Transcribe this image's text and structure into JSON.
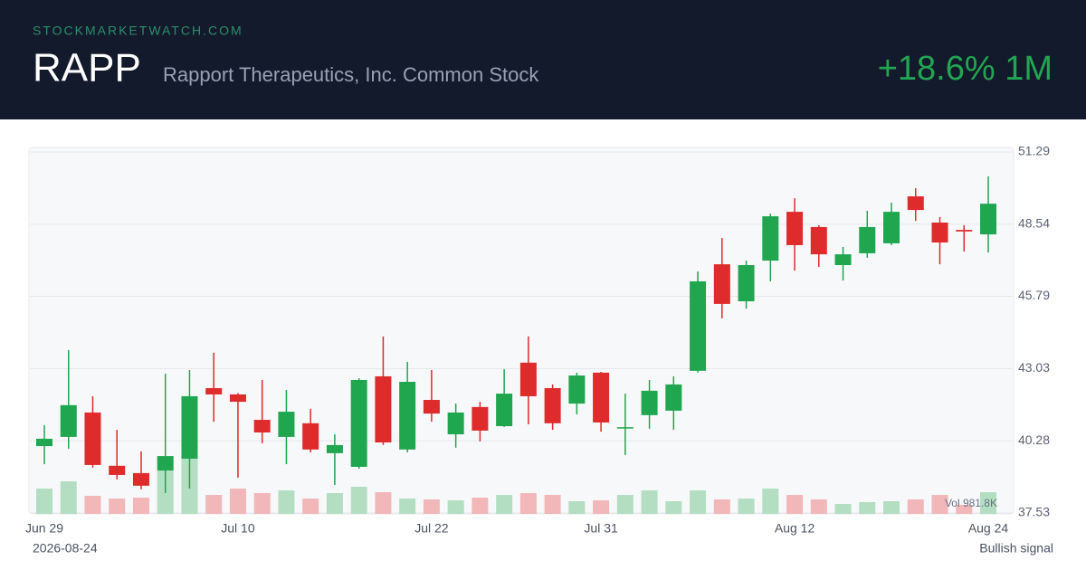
{
  "header": {
    "site": "STOCKMARKETWATCH.COM",
    "ticker": "RAPP",
    "name": "Rapport Therapeutics, Inc. Common Stock",
    "change": "+18.6% 1M"
  },
  "chart_data": {
    "type": "candlestick",
    "categories": [
      "Jun 29",
      null,
      null,
      null,
      null,
      null,
      null,
      null,
      "Jul 10",
      null,
      null,
      null,
      null,
      null,
      null,
      null,
      "Jul 22",
      null,
      null,
      null,
      null,
      null,
      null,
      "Jul 31",
      null,
      null,
      null,
      null,
      null,
      null,
      null,
      "Aug 12",
      null,
      null,
      null,
      null,
      null,
      null,
      null,
      "Aug 24"
    ],
    "open": [
      40.08,
      40.43,
      41.36,
      39.33,
      39.05,
      39.15,
      39.6,
      42.29,
      42.05,
      41.08,
      40.43,
      40.95,
      39.81,
      39.29,
      42.74,
      39.95,
      41.84,
      40.53,
      41.57,
      40.84,
      43.26,
      42.29,
      41.7,
      42.88,
      40.77,
      41.26,
      41.43,
      42.95,
      47.01,
      45.6,
      47.15,
      49.01,
      48.43,
      46.98,
      47.43,
      47.81,
      49.6,
      48.6,
      48.32,
      48.15
    ],
    "high": [
      40.88,
      43.74,
      41.98,
      40.7,
      39.88,
      42.84,
      42.98,
      43.64,
      42.1,
      42.6,
      42.22,
      41.5,
      40.53,
      42.67,
      44.26,
      43.29,
      42.98,
      41.7,
      41.77,
      43.01,
      44.26,
      42.43,
      42.88,
      42.91,
      42.08,
      42.6,
      42.74,
      46.74,
      48.01,
      47.15,
      48.94,
      49.53,
      48.5,
      47.67,
      49.05,
      49.36,
      49.91,
      48.81,
      48.5,
      50.36
    ],
    "low": [
      39.39,
      39.98,
      39.26,
      38.81,
      38.43,
      38.29,
      38.46,
      41.01,
      38.88,
      40.19,
      39.39,
      39.84,
      38.6,
      39.22,
      40.12,
      39.84,
      41.01,
      40.02,
      40.26,
      40.81,
      40.91,
      40.7,
      41.29,
      40.63,
      39.74,
      40.74,
      40.7,
      42.88,
      44.95,
      45.32,
      46.36,
      46.77,
      46.91,
      46.39,
      47.26,
      47.74,
      48.67,
      47.01,
      47.5,
      47.46
    ],
    "close": [
      40.36,
      41.64,
      39.36,
      38.98,
      38.57,
      39.7,
      41.98,
      42.05,
      41.77,
      40.6,
      41.39,
      39.95,
      40.12,
      42.6,
      40.22,
      42.53,
      41.32,
      41.36,
      40.67,
      42.08,
      41.98,
      40.95,
      42.77,
      40.98,
      40.8,
      42.19,
      42.43,
      46.36,
      45.5,
      46.98,
      48.84,
      47.74,
      47.39,
      47.39,
      48.43,
      49.01,
      49.08,
      47.84,
      48.26,
      49.32
    ],
    "volume": [
      1145000,
      1472000,
      818000,
      695000,
      736000,
      1963000,
      2495000,
      859000,
      1145000,
      941000,
      1063000,
      695000,
      941000,
      1227000,
      982000,
      695000,
      654000,
      614000,
      736000,
      859000,
      941000,
      859000,
      573000,
      614000,
      859000,
      1063000,
      573000,
      1063000,
      654000,
      695000,
      1145000,
      859000,
      654000,
      450000,
      532000,
      573000,
      654000,
      859000,
      409000,
      981800
    ],
    "volume_label": "Vol 981.8K",
    "ylim": [
      37.53,
      51.29
    ],
    "yticks": [
      37.53,
      40.28,
      43.03,
      45.79,
      48.54,
      51.29
    ],
    "grid": true,
    "up_color": "#1fa64f",
    "down_color": "#de2b2b",
    "up_volume_color": "#b3dec2",
    "down_volume_color": "#f2b7b9"
  },
  "footer": {
    "date": "2026-08-24",
    "signal": "Bullish signal"
  }
}
